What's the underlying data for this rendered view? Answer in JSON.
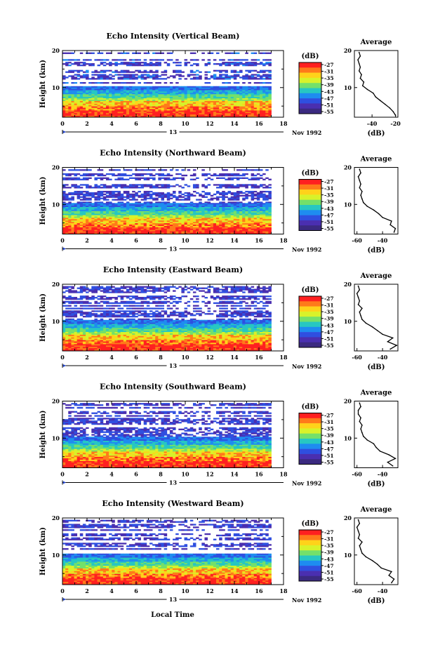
{
  "figure": {
    "xlabel": "Local Time",
    "date_label": "Nov 1992",
    "day_label": "13",
    "colorbar_unit": "(dB)",
    "colorbar_ticks": [
      "-27",
      "-31",
      "-35",
      "-39",
      "-43",
      "-47",
      "-51",
      "-55"
    ],
    "colorbar_colors": [
      "#ff2020",
      "#ff7a1a",
      "#ffd21a",
      "#d8f22a",
      "#74e06a",
      "#27c7c2",
      "#1e8cf0",
      "#2f4fe0",
      "#4a2fb0",
      "#3b2a80"
    ]
  },
  "chart_data": [
    {
      "type": "heatmap",
      "title": "Echo Intensity (Vertical Beam)",
      "xlabel": "Local Time",
      "ylabel": "Height (km)",
      "xlim": [
        0,
        18
      ],
      "ylim": [
        2,
        20
      ],
      "x_ticks": [
        "0",
        "2",
        "4",
        "6",
        "8",
        "10",
        "12",
        "14",
        "16",
        "18"
      ],
      "y_ticks": [
        "10",
        "20"
      ],
      "data_xrange": [
        0,
        17
      ],
      "z_unit": "dB",
      "z_range": [
        -55,
        -27
      ],
      "profile": {
        "type": "line",
        "title": "Average",
        "xlabel": "(dB)",
        "ylabel": "",
        "xlim": [
          -55,
          -18
        ],
        "ylim": [
          2,
          20
        ],
        "x_ticks": [
          "-40",
          "-20"
        ],
        "y_ticks": [
          "10",
          "20"
        ],
        "heights": [
          2.5,
          3.5,
          4.5,
          5.5,
          6.5,
          7.5,
          8.5,
          9.5,
          10.5,
          11.5,
          12.5,
          13.5,
          14.5,
          15.5,
          16.5,
          17.5,
          18.5,
          19.5
        ],
        "values": [
          -20,
          -22,
          -25,
          -29,
          -33,
          -37,
          -39,
          -44,
          -48,
          -47,
          -50,
          -49,
          -51,
          -50,
          -51,
          -52,
          -50,
          -51
        ]
      }
    },
    {
      "type": "heatmap",
      "title": "Echo Intensity (Northward Beam)",
      "xlabel": "Local Time",
      "ylabel": "Height (km)",
      "xlim": [
        0,
        18
      ],
      "ylim": [
        2,
        20
      ],
      "x_ticks": [
        "0",
        "2",
        "4",
        "6",
        "8",
        "10",
        "12",
        "14",
        "16",
        "18"
      ],
      "y_ticks": [
        "10",
        "20"
      ],
      "data_xrange": [
        0,
        17
      ],
      "z_unit": "dB",
      "z_range": [
        -55,
        -27
      ],
      "profile": {
        "type": "line",
        "title": "Average",
        "xlabel": "(dB)",
        "ylabel": "",
        "xlim": [
          -62,
          -28
        ],
        "ylim": [
          2,
          20
        ],
        "x_ticks": [
          "-60",
          "-40"
        ],
        "y_ticks": [
          "10",
          "20"
        ],
        "heights": [
          2.5,
          3.5,
          4.5,
          5.5,
          6.5,
          7.5,
          8.5,
          9.5,
          10.5,
          11.5,
          12.5,
          13.5,
          14.5,
          15.5,
          16.5,
          17.5,
          18.5,
          19.5
        ],
        "values": [
          -31,
          -30,
          -34,
          -33,
          -40,
          -43,
          -47,
          -52,
          -55,
          -56,
          -57,
          -56,
          -58,
          -57,
          -58,
          -59,
          -57,
          -58
        ]
      }
    },
    {
      "type": "heatmap",
      "title": "Echo Intensity (Eastward Beam)",
      "xlabel": "Local Time",
      "ylabel": "Height (km)",
      "xlim": [
        0,
        18
      ],
      "ylim": [
        2,
        20
      ],
      "x_ticks": [
        "0",
        "2",
        "4",
        "6",
        "8",
        "10",
        "12",
        "14",
        "16",
        "18"
      ],
      "y_ticks": [
        "10",
        "20"
      ],
      "data_xrange": [
        0,
        17
      ],
      "z_unit": "dB",
      "z_range": [
        -55,
        -27
      ],
      "profile": {
        "type": "line",
        "title": "Average",
        "xlabel": "(dB)",
        "ylabel": "",
        "xlim": [
          -62,
          -28
        ],
        "ylim": [
          2,
          20
        ],
        "x_ticks": [
          "-60",
          "-40"
        ],
        "y_ticks": [
          "10",
          "20"
        ],
        "heights": [
          2.5,
          3.5,
          4.5,
          5.5,
          6.5,
          7.5,
          8.5,
          9.5,
          10.5,
          11.5,
          12.5,
          13.5,
          14.5,
          15.5,
          16.5,
          17.5,
          18.5,
          19.5
        ],
        "values": [
          -34,
          -29,
          -36,
          -32,
          -40,
          -44,
          -48,
          -53,
          -56,
          -57,
          -58,
          -56,
          -59,
          -58,
          -59,
          -60,
          -58,
          -59
        ]
      }
    },
    {
      "type": "heatmap",
      "title": "Echo Intensity (Southward Beam)",
      "xlabel": "Local Time",
      "ylabel": "Height (km)",
      "xlim": [
        0,
        18
      ],
      "ylim": [
        2,
        20
      ],
      "x_ticks": [
        "0",
        "2",
        "4",
        "6",
        "8",
        "10",
        "12",
        "14",
        "16",
        "18"
      ],
      "y_ticks": [
        "10",
        "20"
      ],
      "data_xrange": [
        0,
        17
      ],
      "z_unit": "dB",
      "z_range": [
        -55,
        -27
      ],
      "profile": {
        "type": "line",
        "title": "Average",
        "xlabel": "(dB)",
        "ylabel": "",
        "xlim": [
          -62,
          -28
        ],
        "ylim": [
          2,
          20
        ],
        "x_ticks": [
          "-60",
          "-40"
        ],
        "y_ticks": [
          "10",
          "20"
        ],
        "heights": [
          2.5,
          3.5,
          4.5,
          5.5,
          6.5,
          7.5,
          8.5,
          9.5,
          10.5,
          11.5,
          12.5,
          13.5,
          14.5,
          15.5,
          16.5,
          17.5,
          18.5,
          19.5
        ],
        "values": [
          -32,
          -36,
          -30,
          -35,
          -42,
          -45,
          -47,
          -52,
          -55,
          -56,
          -57,
          -56,
          -58,
          -57,
          -59,
          -59,
          -57,
          -58
        ]
      }
    },
    {
      "type": "heatmap",
      "title": "Echo Intensity (Westward Beam)",
      "xlabel": "Local Time",
      "ylabel": "Height (km)",
      "xlim": [
        0,
        18
      ],
      "ylim": [
        2,
        20
      ],
      "x_ticks": [
        "0",
        "2",
        "4",
        "6",
        "8",
        "10",
        "12",
        "14",
        "16",
        "18"
      ],
      "y_ticks": [
        "10",
        "20"
      ],
      "data_xrange": [
        0,
        17
      ],
      "z_unit": "dB",
      "z_range": [
        -55,
        -27
      ],
      "profile": {
        "type": "line",
        "title": "Average",
        "xlabel": "(dB)",
        "ylabel": "",
        "xlim": [
          -62,
          -28
        ],
        "ylim": [
          2,
          20
        ],
        "x_ticks": [
          "-60",
          "-40"
        ],
        "y_ticks": [
          "10",
          "20"
        ],
        "heights": [
          2.5,
          3.5,
          4.5,
          5.5,
          6.5,
          7.5,
          8.5,
          9.5,
          10.5,
          11.5,
          12.5,
          13.5,
          14.5,
          15.5,
          16.5,
          17.5,
          18.5,
          19.5
        ],
        "values": [
          -33,
          -31,
          -35,
          -33,
          -41,
          -44,
          -48,
          -53,
          -56,
          -57,
          -58,
          -56,
          -59,
          -58,
          -59,
          -60,
          -58,
          -59
        ]
      }
    }
  ]
}
